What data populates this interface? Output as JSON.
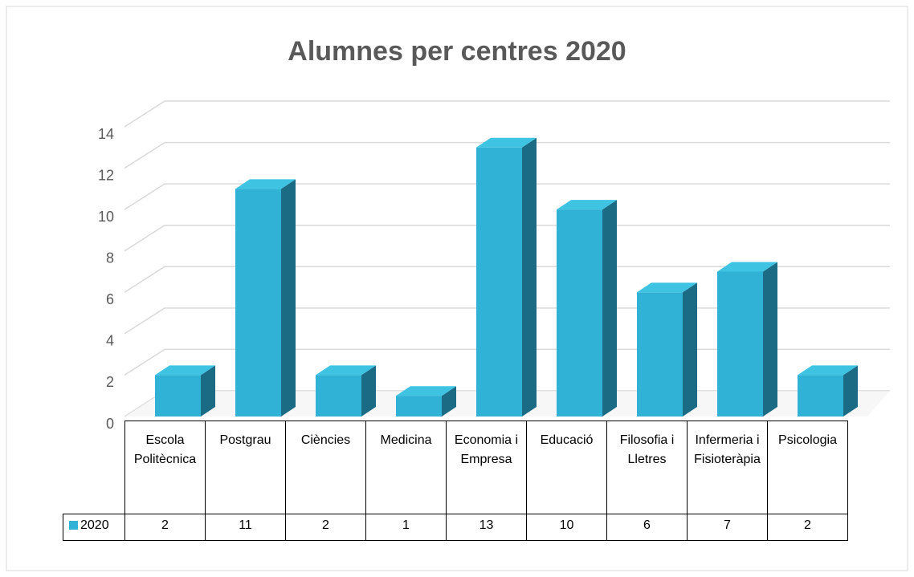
{
  "chart_data": {
    "type": "bar3d",
    "title": "Alumnes per centres 2020",
    "categories": [
      "Escola Politècnica",
      "Postgrau",
      "Ciències",
      "Medicina",
      "Economia i Empresa",
      "Educació",
      "Filosofia i Lletres",
      "Infermeria i Fisioteràpia",
      "Psicologia"
    ],
    "series": [
      {
        "name": "2020",
        "color": "#2fb2d6",
        "values": [
          2,
          11,
          2,
          1,
          13,
          10,
          6,
          7,
          2
        ]
      }
    ],
    "ylim": [
      0,
      14
    ],
    "yticks": [
      0,
      2,
      4,
      6,
      8,
      10,
      12,
      14
    ],
    "grid": true,
    "data_table": true
  }
}
